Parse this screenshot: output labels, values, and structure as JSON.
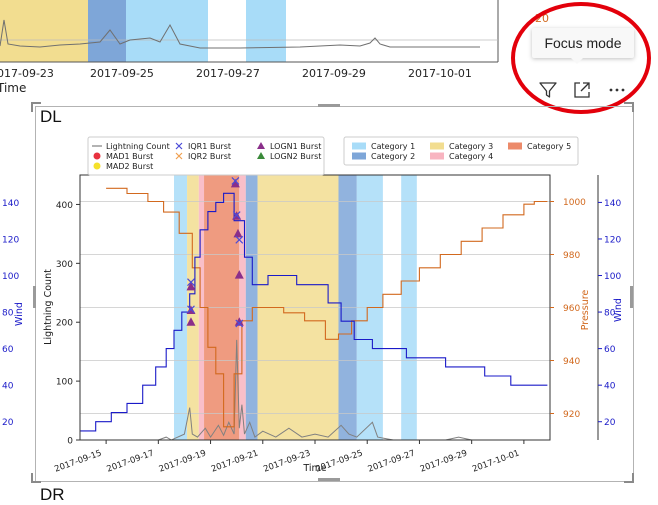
{
  "top_strip": {
    "dates": [
      "2017-09-23",
      "2017-09-25",
      "2017-09-27",
      "2017-09-29",
      "2017-10-01"
    ],
    "axis_label": "Time",
    "right_tick": "20"
  },
  "toolbar": {
    "tooltip": "Focus mode",
    "filter_icon": "filter-icon",
    "focus_icon": "focus-mode-icon",
    "more_icon": "more-options-icon",
    "highlight_color": "#e3000b"
  },
  "visual": {
    "title": "DL",
    "next_title": "DR"
  },
  "chart_data": {
    "type": "line",
    "xlabel": "Time",
    "ylabel_left": "Lightning Count",
    "ylabel_pressure": "Pressure",
    "ylabel_wind": "Wind",
    "x_ticks": [
      "2017-09-15",
      "2017-09-17",
      "2017-09-19",
      "2017-09-21",
      "2017-09-23",
      "2017-09-25",
      "2017-09-27",
      "2017-09-29",
      "2017-10-01"
    ],
    "y_ticks": [
      "0",
      "100",
      "200",
      "300",
      "400"
    ],
    "pressure_ticks": [
      "920",
      "940",
      "960",
      "980",
      "1000"
    ],
    "wind_ticks": [
      "20",
      "40",
      "60",
      "80",
      "100",
      "120",
      "140"
    ],
    "left_wind_ticks": [
      "140",
      "120",
      "100",
      "80",
      "60",
      "40",
      "20"
    ],
    "left_wind_label": "Wind",
    "ylim": [
      0,
      450
    ],
    "pressure_lim": [
      910,
      1010
    ],
    "wind_lim": [
      10,
      155
    ],
    "legend_left": [
      {
        "label": "Lightning Count",
        "marker": "line",
        "color": "#808080"
      },
      {
        "label": "MAD1 Burst",
        "marker": "dot",
        "color": "#e8313f"
      },
      {
        "label": "MAD2 Burst",
        "marker": "dot",
        "color": "#f5e12a"
      },
      {
        "label": "IQR1 Burst",
        "marker": "x",
        "color": "#4b4bd8"
      },
      {
        "label": "IQR2 Burst",
        "marker": "x",
        "color": "#f0a050"
      },
      {
        "label": "LOGN1 Burst",
        "marker": "triangle",
        "color": "#8a2f8a"
      },
      {
        "label": "LOGN2 Burst",
        "marker": "triangle",
        "color": "#3a8a3a"
      }
    ],
    "legend_right": [
      {
        "label": "Category 1",
        "color": "#a8dcf8"
      },
      {
        "label": "Category 2",
        "color": "#7ea6d8"
      },
      {
        "label": "Category 3",
        "color": "#f2dd90"
      },
      {
        "label": "Category 4",
        "color": "#f8b4c0"
      },
      {
        "label": "Category 5",
        "color": "#ec8a6a"
      }
    ],
    "category_bands": [
      {
        "start": 17.6,
        "end": 18.1,
        "cat": 1
      },
      {
        "start": 18.1,
        "end": 18.55,
        "cat": 3
      },
      {
        "start": 18.55,
        "end": 18.75,
        "cat": 4
      },
      {
        "start": 18.75,
        "end": 20.1,
        "cat": 5
      },
      {
        "start": 20.1,
        "end": 20.35,
        "cat": 4
      },
      {
        "start": 20.35,
        "end": 20.8,
        "cat": 2
      },
      {
        "start": 20.8,
        "end": 23.9,
        "cat": 3
      },
      {
        "start": 23.9,
        "end": 24.6,
        "cat": 2
      },
      {
        "start": 24.6,
        "end": 25.6,
        "cat": 1
      },
      {
        "start": 26.3,
        "end": 26.9,
        "cat": 1
      }
    ],
    "wind_series": {
      "name": "Wind",
      "color": "#1a1ac8",
      "points": [
        [
          14.0,
          15
        ],
        [
          14.6,
          15
        ],
        [
          14.6,
          20
        ],
        [
          15.2,
          20
        ],
        [
          15.2,
          25
        ],
        [
          15.8,
          25
        ],
        [
          15.8,
          30
        ],
        [
          16.4,
          30
        ],
        [
          16.4,
          40
        ],
        [
          16.9,
          40
        ],
        [
          16.9,
          50
        ],
        [
          17.3,
          50
        ],
        [
          17.3,
          60
        ],
        [
          17.6,
          60
        ],
        [
          17.6,
          70
        ],
        [
          17.9,
          70
        ],
        [
          17.9,
          80
        ],
        [
          18.2,
          80
        ],
        [
          18.2,
          90
        ],
        [
          18.4,
          90
        ],
        [
          18.4,
          110
        ],
        [
          18.6,
          110
        ],
        [
          18.6,
          125
        ],
        [
          18.9,
          125
        ],
        [
          18.9,
          135
        ],
        [
          19.2,
          135
        ],
        [
          19.2,
          140
        ],
        [
          19.5,
          140
        ],
        [
          19.5,
          145
        ],
        [
          19.9,
          145
        ],
        [
          19.9,
          130
        ],
        [
          20.3,
          130
        ],
        [
          20.3,
          110
        ],
        [
          20.6,
          110
        ],
        [
          20.6,
          95
        ],
        [
          21.2,
          95
        ],
        [
          21.2,
          100
        ],
        [
          22.3,
          100
        ],
        [
          22.3,
          95
        ],
        [
          23.5,
          95
        ],
        [
          23.5,
          85
        ],
        [
          24.0,
          85
        ],
        [
          24.0,
          75
        ],
        [
          24.5,
          75
        ],
        [
          24.5,
          65
        ],
        [
          25.2,
          65
        ],
        [
          25.2,
          60
        ],
        [
          26.5,
          60
        ],
        [
          26.5,
          55
        ],
        [
          28.0,
          55
        ],
        [
          28.0,
          50
        ],
        [
          29.5,
          50
        ],
        [
          29.5,
          45
        ],
        [
          30.5,
          45
        ],
        [
          30.5,
          40
        ],
        [
          31.9,
          40
        ]
      ]
    },
    "pressure_series": {
      "name": "Pressure",
      "color": "#d2691e",
      "points": [
        [
          15.0,
          1005
        ],
        [
          15.8,
          1005
        ],
        [
          15.8,
          1003
        ],
        [
          16.6,
          1003
        ],
        [
          16.6,
          1000
        ],
        [
          17.2,
          1000
        ],
        [
          17.2,
          996
        ],
        [
          17.8,
          996
        ],
        [
          17.8,
          988
        ],
        [
          18.3,
          988
        ],
        [
          18.3,
          975
        ],
        [
          18.6,
          975
        ],
        [
          18.6,
          960
        ],
        [
          18.9,
          960
        ],
        [
          18.9,
          945
        ],
        [
          19.2,
          945
        ],
        [
          19.2,
          935
        ],
        [
          19.5,
          935
        ],
        [
          19.5,
          915
        ],
        [
          19.9,
          915
        ],
        [
          19.9,
          935
        ],
        [
          20.2,
          935
        ],
        [
          20.2,
          955
        ],
        [
          20.6,
          955
        ],
        [
          20.6,
          960
        ],
        [
          21.8,
          960
        ],
        [
          21.8,
          958
        ],
        [
          22.6,
          958
        ],
        [
          22.6,
          955
        ],
        [
          23.4,
          955
        ],
        [
          23.4,
          948
        ],
        [
          23.9,
          948
        ],
        [
          23.9,
          950
        ],
        [
          24.4,
          950
        ],
        [
          24.4,
          955
        ],
        [
          25.0,
          955
        ],
        [
          25.0,
          960
        ],
        [
          25.6,
          960
        ],
        [
          25.6,
          965
        ],
        [
          26.3,
          965
        ],
        [
          26.3,
          970
        ],
        [
          27.0,
          970
        ],
        [
          27.0,
          975
        ],
        [
          27.8,
          975
        ],
        [
          27.8,
          980
        ],
        [
          28.6,
          980
        ],
        [
          28.6,
          985
        ],
        [
          29.4,
          985
        ],
        [
          29.4,
          990
        ],
        [
          30.2,
          990
        ],
        [
          30.2,
          995
        ],
        [
          31.0,
          995
        ],
        [
          31.0,
          999
        ],
        [
          31.4,
          999
        ],
        [
          31.4,
          1000
        ],
        [
          31.9,
          1000
        ]
      ]
    },
    "lightning_series": {
      "name": "Lightning Count",
      "color": "#808080",
      "points": [
        [
          16.0,
          0
        ],
        [
          17.0,
          0
        ],
        [
          17.3,
          5
        ],
        [
          17.5,
          0
        ],
        [
          18.0,
          10
        ],
        [
          18.2,
          55
        ],
        [
          18.3,
          10
        ],
        [
          18.5,
          5
        ],
        [
          18.8,
          20
        ],
        [
          19.0,
          5
        ],
        [
          19.3,
          25
        ],
        [
          19.5,
          8
        ],
        [
          19.7,
          30
        ],
        [
          19.9,
          10
        ],
        [
          20.0,
          170
        ],
        [
          20.1,
          20
        ],
        [
          20.2,
          60
        ],
        [
          20.3,
          10
        ],
        [
          20.5,
          30
        ],
        [
          20.7,
          5
        ],
        [
          21.0,
          15
        ],
        [
          21.5,
          5
        ],
        [
          22.0,
          20
        ],
        [
          22.5,
          5
        ],
        [
          23.0,
          10
        ],
        [
          23.5,
          5
        ],
        [
          24.0,
          25
        ],
        [
          24.3,
          10
        ],
        [
          24.6,
          5
        ],
        [
          25.2,
          30
        ],
        [
          25.4,
          5
        ],
        [
          26.0,
          0
        ],
        [
          28.0,
          0
        ],
        [
          28.5,
          5
        ],
        [
          29.0,
          0
        ],
        [
          31.9,
          0
        ]
      ]
    },
    "burst_markers": [
      {
        "x": 18.25,
        "y": 260,
        "type": "LOGN1"
      },
      {
        "x": 18.25,
        "y": 220,
        "type": "LOGN1"
      },
      {
        "x": 18.25,
        "y": 200,
        "type": "LOGN1"
      },
      {
        "x": 19.95,
        "y": 435,
        "type": "LOGN1"
      },
      {
        "x": 20.0,
        "y": 380,
        "type": "LOGN1"
      },
      {
        "x": 20.05,
        "y": 350,
        "type": "LOGN1"
      },
      {
        "x": 20.1,
        "y": 280,
        "type": "LOGN1"
      },
      {
        "x": 20.1,
        "y": 200,
        "type": "LOGN1"
      },
      {
        "x": 18.25,
        "y": 268,
        "type": "IQR1"
      },
      {
        "x": 18.25,
        "y": 222,
        "type": "IQR1"
      },
      {
        "x": 19.95,
        "y": 440,
        "type": "IQR1"
      },
      {
        "x": 20.0,
        "y": 382,
        "type": "IQR1"
      },
      {
        "x": 20.1,
        "y": 340,
        "type": "IQR1"
      },
      {
        "x": 20.1,
        "y": 198,
        "type": "IQR1"
      }
    ]
  }
}
